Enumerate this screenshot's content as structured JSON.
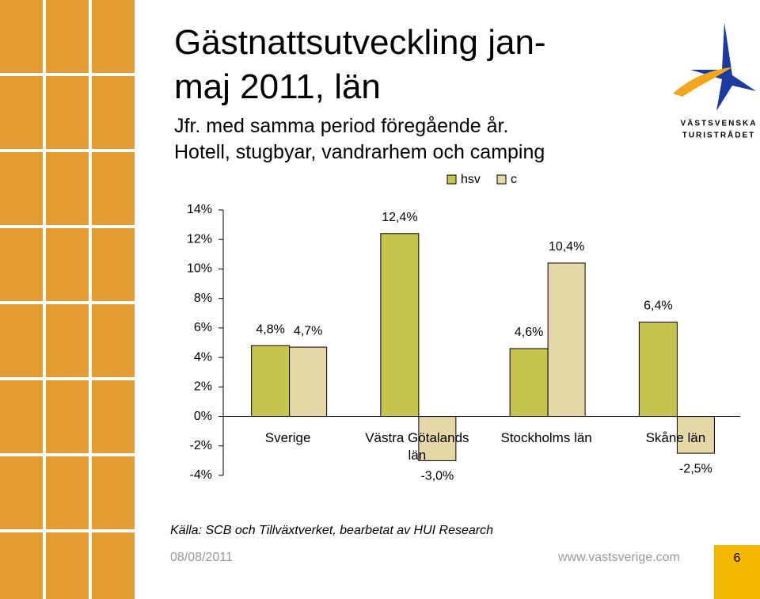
{
  "chart_data": {
    "type": "bar",
    "title": "Gästnattsutveckling jan-maj 2011, län",
    "subtitles": [
      "Jfr. med samma period föregående år.",
      "Hotell, stugbyar, vandrarhem och camping"
    ],
    "categories": [
      "Sverige",
      "Västra Götalands län",
      "Stockholms län",
      "Skåne län"
    ],
    "series": [
      {
        "name": "hsv",
        "color": "#c4c44e",
        "values": [
          4.8,
          12.4,
          4.6,
          6.4
        ],
        "value_labels": [
          "4,8%",
          "12,4%",
          "4,6%",
          "6,4%"
        ]
      },
      {
        "name": "c",
        "color": "#e3d8a6",
        "values": [
          4.7,
          -3.0,
          10.4,
          -2.5
        ],
        "value_labels": [
          "4,7%",
          "-3,0%",
          "10,4%",
          "-2,5%"
        ]
      }
    ],
    "ylim": [
      -4,
      14
    ],
    "yticks": [
      {
        "value": -4,
        "label": "-4%"
      },
      {
        "value": -2,
        "label": "-2%"
      },
      {
        "value": 0,
        "label": "0%"
      },
      {
        "value": 2,
        "label": "2%"
      },
      {
        "value": 4,
        "label": "4%"
      },
      {
        "value": 6,
        "label": "6%"
      },
      {
        "value": 8,
        "label": "8%"
      },
      {
        "value": 10,
        "label": "10%"
      },
      {
        "value": 12,
        "label": "12%"
      },
      {
        "value": 14,
        "label": "14%"
      }
    ],
    "grid": false,
    "legend": "top",
    "source": "Källa: SCB och Tillväxtverket, bearbetat av HUI Research"
  },
  "logo": {
    "line1": "VÄSTSVENSKA",
    "line2": "TURISTRÅDET"
  },
  "footer": {
    "date": "08/08/2011",
    "url": "www.vastsverige.com",
    "page": "6"
  }
}
